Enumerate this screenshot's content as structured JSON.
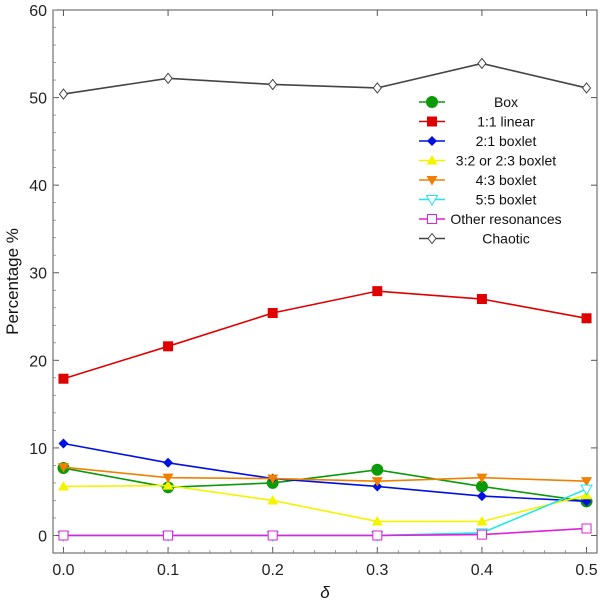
{
  "chart_data": {
    "type": "line",
    "title": "",
    "xlabel": "δ",
    "ylabel": "Percentage %",
    "xlim": [
      -0.01,
      0.51
    ],
    "ylim": [
      -2,
      60
    ],
    "xticks": [
      0.0,
      0.1,
      0.2,
      0.3,
      0.4,
      0.5
    ],
    "xtick_labels": [
      "0.0",
      "0.1",
      "0.2",
      "0.3",
      "0.4",
      "0.5"
    ],
    "yticks": [
      0,
      10,
      20,
      30,
      40,
      50,
      60
    ],
    "ytick_labels": [
      "0",
      "10",
      "20",
      "30",
      "40",
      "50",
      "60"
    ],
    "legend_position": "top-right",
    "x": [
      0.0,
      0.1,
      0.2,
      0.3,
      0.4,
      0.5
    ],
    "series": [
      {
        "name": "Box",
        "color": "#0a9a0a",
        "marker": "circle",
        "values": [
          7.7,
          5.5,
          6.0,
          7.5,
          5.6,
          3.9
        ]
      },
      {
        "name": "1:1 linear",
        "color": "#e00000",
        "marker": "square",
        "values": [
          17.9,
          21.6,
          25.4,
          27.9,
          27.0,
          24.8
        ]
      },
      {
        "name": "2:1 boxlet",
        "color": "#0010e0",
        "marker": "diamond",
        "values": [
          10.5,
          8.3,
          6.5,
          5.6,
          4.5,
          3.9
        ]
      },
      {
        "name": "3:2 or 2:3 boxlet",
        "color": "#f4f400",
        "marker": "triangle-up",
        "values": [
          5.6,
          5.7,
          4.0,
          1.6,
          1.6,
          4.6
        ]
      },
      {
        "name": "4:3 boxlet",
        "color": "#f08000",
        "marker": "triangle-down",
        "values": [
          7.8,
          6.6,
          6.5,
          6.2,
          6.6,
          6.2
        ]
      },
      {
        "name": "5:5 boxlet",
        "color": "#20e8e8",
        "marker": "triangle-down-open",
        "values": [
          0.0,
          0.0,
          0.0,
          0.0,
          0.3,
          5.3
        ]
      },
      {
        "name": "Other resonances",
        "color": "#dd22dd",
        "marker": "square-open",
        "values": [
          0.0,
          0.0,
          0.0,
          0.0,
          0.1,
          0.8
        ]
      },
      {
        "name": "Chaotic",
        "color": "#444444",
        "marker": "diamond-open",
        "values": [
          50.4,
          52.2,
          51.5,
          51.1,
          53.9,
          51.1
        ]
      }
    ]
  }
}
